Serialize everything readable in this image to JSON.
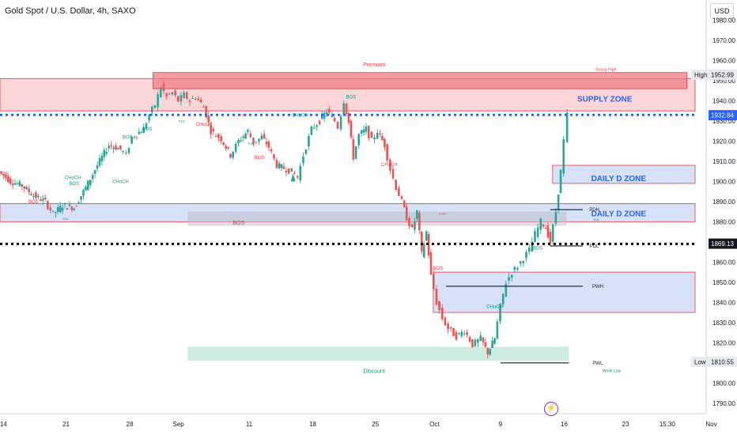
{
  "header": {
    "title": "Gold Spot / U.S. Dollar, 4h, SAXO",
    "currency": "USD"
  },
  "colors": {
    "up": "#26a69a",
    "down": "#ef5350",
    "supply_fill": "#f7b5b9",
    "supply_border": "#e53945",
    "demand_fill": "#c9d8f7",
    "demand_border": "#e53945",
    "discount_fill": "#b9e6d3",
    "blue_dots": "#2962ff",
    "zone_text": "#2962ff",
    "bos_green": "#089981",
    "bos_red": "#f23645",
    "axis_text": "#131722"
  },
  "chart_data": {
    "type": "candlestick",
    "symbol": "XAUUSD",
    "timeframe": "4h",
    "ylim": [
      1785,
      1990
    ],
    "xlim": [
      0,
      60
    ],
    "y_ticks": [
      1790,
      1800,
      1810,
      1820,
      1830,
      1840,
      1850,
      1860,
      1870,
      1880,
      1890,
      1900,
      1910,
      1920,
      1930,
      1940,
      1950,
      1960,
      1970,
      1980
    ],
    "x_ticks": [
      {
        "label": "14",
        "x": 0.3
      },
      {
        "label": "21",
        "x": 5.7
      },
      {
        "label": "28",
        "x": 11.2
      },
      {
        "label": "Sep",
        "x": 15.4
      },
      {
        "label": "11",
        "x": 21.5
      },
      {
        "label": "18",
        "x": 27
      },
      {
        "label": "25",
        "x": 32.4
      },
      {
        "label": "Oct",
        "x": 37.5
      },
      {
        "label": "9",
        "x": 43.2
      },
      {
        "label": "16",
        "x": 48.7
      },
      {
        "label": "23",
        "x": 54
      },
      {
        "label": "15:30",
        "x": 57.6
      },
      {
        "label": "Nov",
        "x": 61.4
      }
    ],
    "price_labels": [
      {
        "value": "1952.99",
        "y": 1952.99,
        "tag": "High",
        "style": "grey"
      },
      {
        "value": "1932.84",
        "y": 1932.84,
        "style": "blue"
      },
      {
        "value": "1869.13",
        "y": 1869.13,
        "style": "black"
      },
      {
        "value": "1810.55",
        "y": 1810.55,
        "tag": "Low",
        "style": "grey"
      }
    ],
    "path": [
      [
        0,
        1905
      ],
      [
        1,
        1900
      ],
      [
        2,
        1898
      ],
      [
        3,
        1893
      ],
      [
        4,
        1890
      ],
      [
        4.7,
        1884
      ],
      [
        5.5,
        1888
      ],
      [
        6.5,
        1887
      ],
      [
        7.5,
        1897
      ],
      [
        8.5,
        1908
      ],
      [
        9.5,
        1918
      ],
      [
        10.5,
        1916
      ],
      [
        11,
        1913
      ],
      [
        11.5,
        1922
      ],
      [
        12.5,
        1926
      ],
      [
        13,
        1933
      ],
      [
        13.5,
        1938
      ],
      [
        14,
        1947
      ],
      [
        14.5,
        1942
      ],
      [
        15,
        1944
      ],
      [
        15.5,
        1940
      ],
      [
        16,
        1943
      ],
      [
        16.5,
        1940
      ],
      [
        17,
        1942
      ],
      [
        17.7,
        1937
      ],
      [
        18.3,
        1925
      ],
      [
        19.2,
        1921
      ],
      [
        20,
        1913
      ],
      [
        20.7,
        1920
      ],
      [
        21.5,
        1925
      ],
      [
        22,
        1919
      ],
      [
        22.7,
        1922
      ],
      [
        23.3,
        1917
      ],
      [
        24,
        1908
      ],
      [
        24.8,
        1906
      ],
      [
        25.3,
        1905
      ],
      [
        25.8,
        1902
      ],
      [
        26.3,
        1913
      ],
      [
        27,
        1926
      ],
      [
        27.7,
        1930
      ],
      [
        28.3,
        1935
      ],
      [
        29,
        1930
      ],
      [
        29.3,
        1927
      ],
      [
        29.8,
        1940
      ],
      [
        30.2,
        1929
      ],
      [
        30.6,
        1912
      ],
      [
        31.1,
        1923
      ],
      [
        31.7,
        1926
      ],
      [
        32.2,
        1920
      ],
      [
        32.7,
        1925
      ],
      [
        33.3,
        1918
      ],
      [
        33.8,
        1906
      ],
      [
        34.3,
        1897
      ],
      [
        34.8,
        1890
      ],
      [
        35.2,
        1882
      ],
      [
        35.7,
        1876
      ],
      [
        36.1,
        1885
      ],
      [
        36.5,
        1864
      ],
      [
        36.9,
        1875
      ],
      [
        37.3,
        1853
      ],
      [
        37.8,
        1840
      ],
      [
        38.3,
        1832
      ],
      [
        38.8,
        1827
      ],
      [
        39.5,
        1823
      ],
      [
        40.2,
        1826
      ],
      [
        40.9,
        1819
      ],
      [
        41.6,
        1822
      ],
      [
        42.2,
        1815
      ],
      [
        42.8,
        1822
      ],
      [
        43.3,
        1838
      ],
      [
        43.8,
        1850
      ],
      [
        44.3,
        1855
      ],
      [
        44.8,
        1858
      ],
      [
        45.3,
        1862
      ],
      [
        45.8,
        1866
      ],
      [
        46.3,
        1874
      ],
      [
        46.8,
        1880
      ],
      [
        47.2,
        1877
      ],
      [
        47.6,
        1870
      ],
      [
        48.1,
        1885
      ],
      [
        48.5,
        1905
      ],
      [
        48.8,
        1920
      ],
      [
        49.1,
        1933
      ]
    ],
    "zones": [
      {
        "name": "premium-zone",
        "x0": 0,
        "x1": 60,
        "y0": 1935,
        "y1": 1951,
        "kind": "supply"
      },
      {
        "name": "supply-zone",
        "x0": 13.2,
        "x1": 59.3,
        "y0": 1946,
        "y1": 1954,
        "kind": "supply-dark"
      },
      {
        "name": "daily-d-zone-1",
        "x0": 47.7,
        "x1": 60,
        "y0": 1899,
        "y1": 1908,
        "kind": "demand"
      },
      {
        "name": "daily-d-zone-2",
        "x0": 0,
        "x1": 60,
        "y0": 1880,
        "y1": 1889,
        "kind": "demand"
      },
      {
        "name": "weekly-zone",
        "x0": 37.4,
        "x1": 60,
        "y0": 1835,
        "y1": 1855,
        "kind": "demand"
      },
      {
        "name": "bos-grey-zone",
        "x0": 16.2,
        "x1": 48.9,
        "y0": 1878,
        "y1": 1885,
        "kind": "grey"
      },
      {
        "name": "discount-zone",
        "x0": 16.2,
        "x1": 49.1,
        "y0": 1811,
        "y1": 1818,
        "kind": "discount"
      }
    ],
    "levels": [
      {
        "name": "blue-dotted-level",
        "y": 1933,
        "x0": 0,
        "x1": 60,
        "style": "blue-dots"
      },
      {
        "name": "black-dotted-level",
        "y": 1869,
        "x0": 0,
        "x1": 60,
        "style": "black-dots"
      },
      {
        "name": "pdh-line",
        "y": 1886,
        "x0": 47.5,
        "x1": 50.3,
        "style": "line"
      },
      {
        "name": "pdl-line",
        "y": 1868,
        "x0": 47.5,
        "x1": 50.3,
        "style": "line"
      },
      {
        "name": "pwh-line",
        "y": 1848,
        "x0": 38.5,
        "x1": 50.3,
        "style": "line"
      },
      {
        "name": "pwl-line",
        "y": 1810,
        "x0": 43.2,
        "x1": 49.1,
        "style": "line"
      }
    ],
    "annotations": [
      {
        "text": "Premium",
        "x": 32.3,
        "y": 1958,
        "color": "#f23645",
        "size": 7
      },
      {
        "text": "Strong High",
        "x": 52.3,
        "y": 1955.5,
        "color": "#f23645",
        "size": 5
      },
      {
        "text": "SUPPLY ZONE",
        "x": 52.2,
        "y": 1941,
        "color": "#2962ff",
        "size": 10,
        "weight": "bold"
      },
      {
        "text": "DAILY D ZONE",
        "x": 53.4,
        "y": 1901.5,
        "color": "#2962ff",
        "size": 10,
        "weight": "bold"
      },
      {
        "text": "DAILY D ZONE",
        "x": 53.4,
        "y": 1884,
        "color": "#2962ff",
        "size": 10,
        "weight": "bold"
      },
      {
        "text": "BOS",
        "x": 20.6,
        "y": 1879.5,
        "color": "#f23645",
        "size": 7
      },
      {
        "text": "Discount",
        "x": 32.3,
        "y": 1806,
        "color": "#089981",
        "size": 7
      },
      {
        "text": "Weak Low",
        "x": 52.8,
        "y": 1806,
        "color": "#089981",
        "size": 5
      },
      {
        "text": "PDH",
        "x": 51.3,
        "y": 1886,
        "color": "#131722",
        "size": 6
      },
      {
        "text": "PDL",
        "x": 51.3,
        "y": 1868,
        "color": "#131722",
        "size": 6
      },
      {
        "text": "PWH",
        "x": 51.6,
        "y": 1848,
        "color": "#131722",
        "size": 6
      },
      {
        "text": "PWL",
        "x": 51.6,
        "y": 1810,
        "color": "#131722",
        "size": 6
      },
      {
        "text": "BOS",
        "x": 11,
        "y": 1922,
        "color": "#089981",
        "size": 6
      },
      {
        "text": "BOS",
        "x": 12.7,
        "y": 1926,
        "color": "#089981",
        "size": 6
      },
      {
        "text": "BOS",
        "x": 6.4,
        "y": 1899,
        "color": "#089981",
        "size": 6
      },
      {
        "text": "CHoCH",
        "x": 6.3,
        "y": 1902,
        "color": "#089981",
        "size": 6
      },
      {
        "text": "CHoCH",
        "x": 10.4,
        "y": 1900,
        "color": "#089981",
        "size": 6
      },
      {
        "text": "CHoCH",
        "x": 25.9,
        "y": 1933,
        "color": "#089981",
        "size": 6
      },
      {
        "text": "BOS",
        "x": 30.3,
        "y": 1942,
        "color": "#089981",
        "size": 6
      },
      {
        "text": "CHoCH",
        "x": 42.7,
        "y": 1838,
        "color": "#089981",
        "size": 6
      },
      {
        "text": "BOS",
        "x": 46.4,
        "y": 1867,
        "color": "#089981",
        "size": 6
      },
      {
        "text": "BOS",
        "x": 0.3,
        "y": 1904,
        "color": "#f23645",
        "size": 6
      },
      {
        "text": "BOS",
        "x": 2.9,
        "y": 1890,
        "color": "#f23645",
        "size": 6
      },
      {
        "text": "CHoCH",
        "x": 17.6,
        "y": 1928.5,
        "color": "#f23645",
        "size": 6
      },
      {
        "text": "BOS",
        "x": 22.4,
        "y": 1912,
        "color": "#f23645",
        "size": 6
      },
      {
        "text": "CHoCH",
        "x": 33.6,
        "y": 1908.5,
        "color": "#f23645",
        "size": 6
      },
      {
        "text": "BOS",
        "x": 37.8,
        "y": 1857,
        "color": "#f23645",
        "size": 6
      },
      {
        "text": "EQL",
        "x": 5.7,
        "y": 1881.5,
        "color": "#089981",
        "size": 4
      },
      {
        "text": "EQL",
        "x": 15.7,
        "y": 1930,
        "color": "#089981",
        "size": 4
      },
      {
        "text": "EQL",
        "x": 21.7,
        "y": 1919,
        "color": "#089981",
        "size": 4
      },
      {
        "text": "EQH",
        "x": 21,
        "y": 1933,
        "color": "#f23645",
        "size": 4
      },
      {
        "text": "EQH",
        "x": 38.2,
        "y": 1884,
        "color": "#f23645",
        "size": 4
      },
      {
        "text": "EQL",
        "x": 51.5,
        "y": 1881,
        "color": "#089981",
        "size": 4
      }
    ]
  }
}
